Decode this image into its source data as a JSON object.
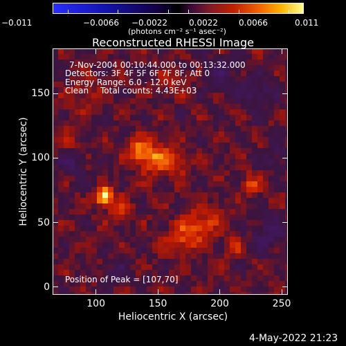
{
  "colorbar": {
    "tick_labels": [
      "−0.011",
      "−0.0066",
      "−0.0022",
      "0.0022",
      "0.0066",
      "0.011"
    ],
    "units": "(photons cm⁻² s⁻¹ asec⁻²)"
  },
  "chart_data": {
    "type": "heatmap",
    "title": "Reconstructed RHESSI Image",
    "xlabel": "Heliocentric X (arcsec)",
    "ylabel": "Heliocentric Y (arcsec)",
    "xlim": [
      65,
      255
    ],
    "ylim": [
      -6,
      185
    ],
    "x_ticks": [
      100,
      150,
      200,
      250
    ],
    "y_ticks": [
      0,
      50,
      100,
      150
    ],
    "colorbar_range": [
      -0.011,
      0.011
    ],
    "peak": [
      107,
      70
    ],
    "annotations": {
      "time_range": "7-Nov-2004 00:10:44.000 to 00:13:32.000",
      "detectors": "Detectors: 3F 4F 5F 6F 7F 8F, Att 0",
      "energy_range": "Energy Range: 6.0 - 12.0 keV",
      "clean": "Clean",
      "total_counts": "Total counts: 4.43E+03",
      "peak_position": "Position of Peak = [107,70]"
    }
  },
  "footer": {
    "timestamp": "4-May-2022 21:23"
  }
}
